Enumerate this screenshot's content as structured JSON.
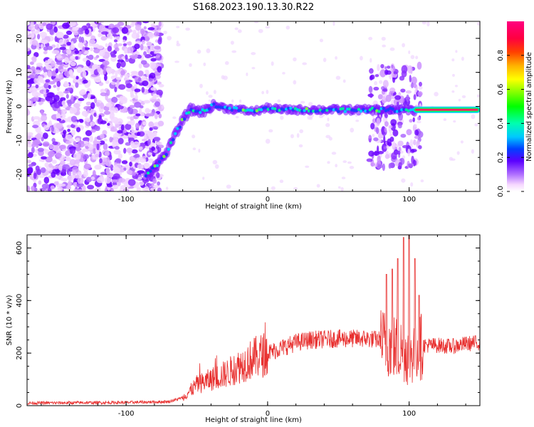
{
  "title": "S168.2023.190.13.30.R22",
  "chart_data": [
    {
      "type": "heatmap",
      "xlabel": "Height of straight line (km)",
      "ylabel": "Frequency (Hz)",
      "xlim": [
        -170,
        150
      ],
      "ylim": [
        -25,
        25
      ],
      "x_ticks": [
        -100,
        0,
        100
      ],
      "y_ticks": [
        -20,
        -10,
        0,
        10,
        20
      ],
      "colorbar": {
        "label": "Normalized spectral amplitude",
        "range": [
          0.0,
          1.0
        ],
        "ticks": [
          "0.0",
          "0.2",
          "0.4",
          "0.6",
          "0.8"
        ],
        "colormap": "gist_ncar-like (white, magenta, blue, cyan, green, yellow, orange, red, pink)"
      },
      "ridge": [
        {
          "x": -86,
          "y": -20.5
        },
        {
          "x": -78,
          "y": -17
        },
        {
          "x": -72,
          "y": -14
        },
        {
          "x": -66,
          "y": -9
        },
        {
          "x": -60,
          "y": -4
        },
        {
          "x": -55,
          "y": -1
        },
        {
          "x": -45,
          "y": -1.5
        },
        {
          "x": -38,
          "y": 0.5
        },
        {
          "x": -30,
          "y": -0.5
        },
        {
          "x": -20,
          "y": -1
        },
        {
          "x": -10,
          "y": -1.5
        },
        {
          "x": 0,
          "y": -0.5
        },
        {
          "x": 10,
          "y": -1
        },
        {
          "x": 30,
          "y": -1
        },
        {
          "x": 60,
          "y": -1
        },
        {
          "x": 80,
          "y": -1
        },
        {
          "x": 100,
          "y": -1
        },
        {
          "x": 150,
          "y": -1
        }
      ],
      "strong_band": {
        "x_from": 105,
        "x_to": 148,
        "y": -1
      }
    },
    {
      "type": "line",
      "xlabel": "Height of straight line (km)",
      "ylabel": "SNR (10 * v/v)",
      "xlim": [
        -170,
        150
      ],
      "ylim": [
        0,
        650
      ],
      "x_ticks": [
        -100,
        0,
        100
      ],
      "y_ticks": [
        0,
        200,
        400,
        600
      ],
      "color": "#e8302f",
      "profile": [
        {
          "x": -170,
          "y": 10
        },
        {
          "x": -100,
          "y": 12
        },
        {
          "x": -70,
          "y": 15
        },
        {
          "x": -60,
          "y": 30
        },
        {
          "x": -50,
          "y": 80
        },
        {
          "x": -40,
          "y": 100
        },
        {
          "x": -30,
          "y": 120
        },
        {
          "x": -20,
          "y": 150
        },
        {
          "x": -10,
          "y": 180
        },
        {
          "x": 0,
          "y": 200
        },
        {
          "x": 10,
          "y": 220
        },
        {
          "x": 20,
          "y": 240
        },
        {
          "x": 30,
          "y": 250
        },
        {
          "x": 50,
          "y": 255
        },
        {
          "x": 70,
          "y": 255
        },
        {
          "x": 80,
          "y": 250
        },
        {
          "x": 90,
          "y": 220
        },
        {
          "x": 100,
          "y": 200
        },
        {
          "x": 110,
          "y": 230
        },
        {
          "x": 120,
          "y": 230
        },
        {
          "x": 130,
          "y": 225
        },
        {
          "x": 140,
          "y": 235
        },
        {
          "x": 150,
          "y": 240
        }
      ],
      "peaks": [
        {
          "x": 84,
          "y": 500
        },
        {
          "x": 88,
          "y": 520
        },
        {
          "x": 92,
          "y": 560
        },
        {
          "x": 96,
          "y": 640
        },
        {
          "x": 100,
          "y": 650
        },
        {
          "x": 104,
          "y": 560
        },
        {
          "x": 107,
          "y": 420
        }
      ]
    }
  ]
}
